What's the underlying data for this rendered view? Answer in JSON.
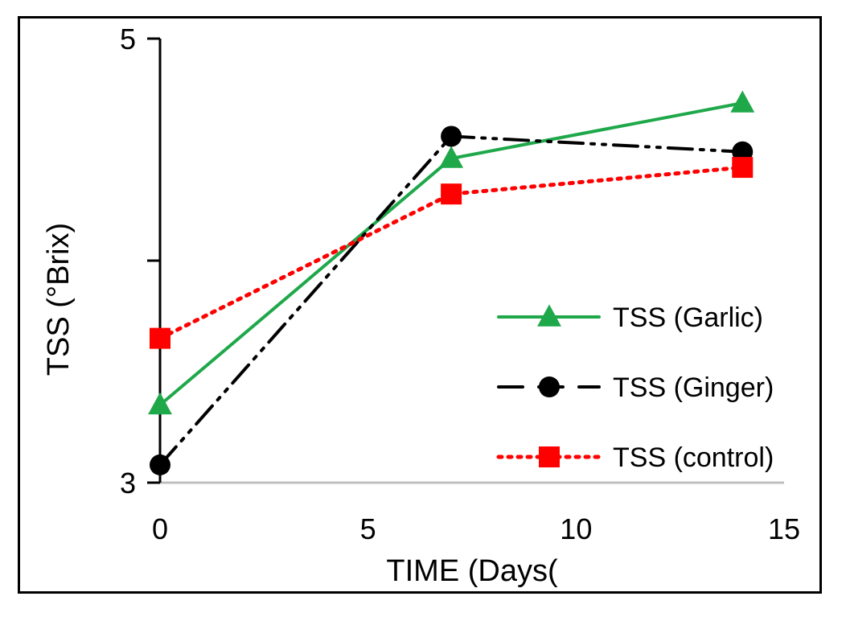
{
  "chart_data": {
    "type": "line",
    "title": "",
    "xlabel": "TIME (Days(",
    "ylabel": "TSS  (°Brix)",
    "xlim": [
      0,
      15
    ],
    "ylim": [
      3,
      5
    ],
    "x_ticks": [
      "0",
      "5",
      "10",
      "15"
    ],
    "y_tick_labels": [
      "3",
      "5"
    ],
    "y_tick_values": [
      3,
      4,
      5
    ],
    "legend_position": "center-right",
    "series": [
      {
        "name": "TSS (Garlic)",
        "x": [
          0,
          7,
          14
        ],
        "y": [
          3.35,
          4.46,
          4.71
        ],
        "color": "#1ea84a",
        "line_style": "solid",
        "marker": "triangle"
      },
      {
        "name": "TSS (Ginger)",
        "x": [
          0,
          7,
          14
        ],
        "y": [
          3.08,
          4.56,
          4.49
        ],
        "color": "#000000",
        "line_style": "dash-dot-dot",
        "marker": "circle"
      },
      {
        "name": "TSS (control)",
        "x": [
          0,
          7,
          14
        ],
        "y": [
          3.65,
          4.3,
          4.42
        ],
        "color": "#ff0000",
        "line_style": "dotted",
        "marker": "square"
      }
    ]
  }
}
